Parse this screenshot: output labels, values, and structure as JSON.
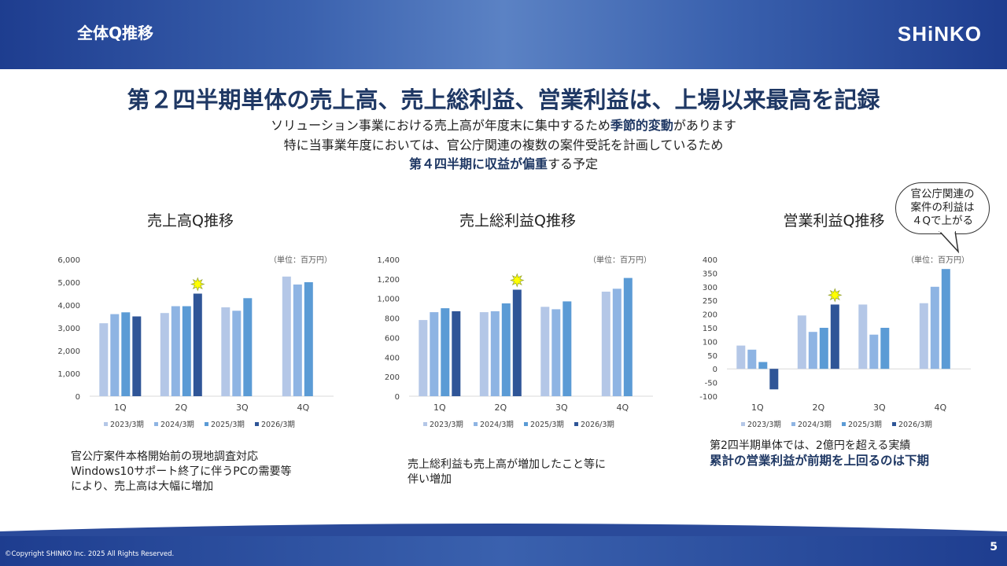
{
  "header": {
    "title": "全体Q推移",
    "logo": "SHiNKO"
  },
  "headline": "第２四半期単体の売上高、売上総利益、営業利益は、上場以来最高を記録",
  "sublines": {
    "line1_pre": "ソリューション事業における売上高が年度末に集中するため",
    "line1_bold": "季節的変動",
    "line1_post": "があります",
    "line2": "特に当事業年度においては、官公庁関連の複数の案件受託を計画しているため",
    "line3_bold": "第４四半期に収益が偏重",
    "line3_post": "する予定"
  },
  "callout": {
    "line1": "官公庁関連の",
    "line2": "案件の利益は",
    "line3": "４Qで上がる"
  },
  "notes": {
    "sales": [
      "官公庁案件本格開始前の現地調査対応",
      "Windows10サポート終了に伴うPCの需要等",
      "により、売上高は大幅に増加"
    ],
    "gross": [
      "売上総利益も売上高が増加したこと等に",
      "伴い増加"
    ],
    "op_line1": "第2四半期単体では、2億円を超える実績",
    "op_line2": "累計の営業利益が前期を上回るのは下期"
  },
  "footer": {
    "copyright": "©Copyright SHINKO Inc. 2025 All Rights Reserved.",
    "page": "5"
  },
  "colors": {
    "s2023": "#b4c7e7",
    "s2024": "#8eb4e3",
    "s2025": "#5b9bd5",
    "s2026": "#2f5597",
    "star": "#ffff00"
  },
  "chart_data": [
    {
      "type": "bar",
      "title": "売上高Q推移",
      "unit": "（単位：百万円）",
      "categories": [
        "1Q",
        "2Q",
        "3Q",
        "4Q"
      ],
      "ylim": [
        0,
        6000
      ],
      "yticks": [
        "0",
        "1,000",
        "2,000",
        "3,000",
        "4,000",
        "5,000",
        "6,000"
      ],
      "highlight": {
        "category": "2Q",
        "series": "2026/3期"
      },
      "series": [
        {
          "name": "2023/3期",
          "values": [
            3200,
            3650,
            3900,
            5250
          ]
        },
        {
          "name": "2024/3期",
          "values": [
            3600,
            3950,
            3750,
            4900
          ]
        },
        {
          "name": "2025/3期",
          "values": [
            3680,
            3950,
            4300,
            5000
          ]
        },
        {
          "name": "2026/3期",
          "values": [
            3500,
            4500,
            null,
            null
          ]
        }
      ]
    },
    {
      "type": "bar",
      "title": "売上総利益Q推移",
      "unit": "（単位：百万円）",
      "categories": [
        "1Q",
        "2Q",
        "3Q",
        "4Q"
      ],
      "ylim": [
        0,
        1400
      ],
      "yticks": [
        "0",
        "200",
        "400",
        "600",
        "800",
        "1,000",
        "1,200",
        "1,400"
      ],
      "highlight": {
        "category": "2Q",
        "series": "2026/3期"
      },
      "series": [
        {
          "name": "2023/3期",
          "values": [
            780,
            860,
            915,
            1070
          ]
        },
        {
          "name": "2024/3期",
          "values": [
            860,
            870,
            890,
            1100
          ]
        },
        {
          "name": "2025/3期",
          "values": [
            900,
            950,
            970,
            1210
          ]
        },
        {
          "name": "2026/3期",
          "values": [
            870,
            1090,
            null,
            null
          ]
        }
      ]
    },
    {
      "type": "bar",
      "title": "営業利益Q推移",
      "unit": "（単位：百万円）",
      "categories": [
        "1Q",
        "2Q",
        "3Q",
        "4Q"
      ],
      "ylim": [
        -100,
        400
      ],
      "yticks": [
        "-100",
        "-50",
        "0",
        "50",
        "100",
        "150",
        "200",
        "250",
        "300",
        "350",
        "400"
      ],
      "highlight": {
        "category": "2Q",
        "series": "2026/3期"
      },
      "series": [
        {
          "name": "2023/3期",
          "values": [
            85,
            195,
            235,
            240
          ]
        },
        {
          "name": "2024/3期",
          "values": [
            70,
            135,
            125,
            300
          ]
        },
        {
          "name": "2025/3期",
          "values": [
            25,
            150,
            150,
            365
          ]
        },
        {
          "name": "2026/3期",
          "values": [
            -75,
            235,
            null,
            null
          ]
        }
      ]
    }
  ]
}
